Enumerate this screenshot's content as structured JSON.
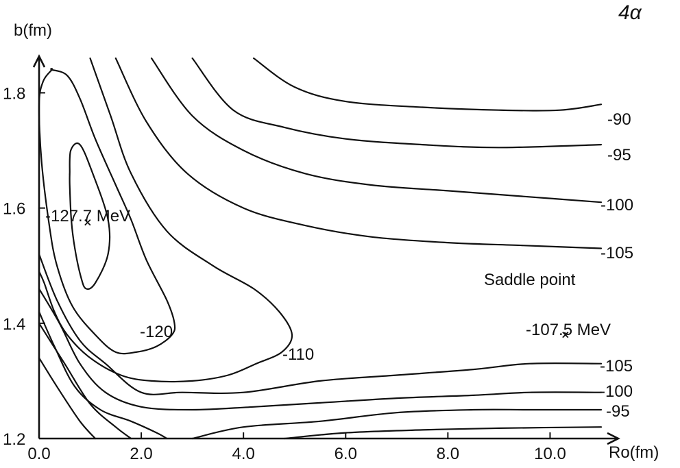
{
  "chart_data": {
    "type": "line",
    "panel_label": "4α",
    "xlabel": "Ro(fm)",
    "ylabel": "b(fm)",
    "xlim": [
      0.0,
      11.0
    ],
    "ylim": [
      1.2,
      1.86
    ],
    "x_ticks": [
      "0.0",
      "2.0",
      "4.0",
      "6.0",
      "8.0",
      "10.0"
    ],
    "y_ticks": [
      "1.2",
      "1.4",
      "1.6",
      "1.8"
    ],
    "grid": false,
    "series": [
      {
        "label": "-127.7",
        "points": [
          [
            0.6,
            1.66
          ],
          [
            0.62,
            1.7
          ],
          [
            0.8,
            1.71
          ],
          [
            1.05,
            1.66
          ],
          [
            1.35,
            1.58
          ],
          [
            1.35,
            1.52
          ],
          [
            1.1,
            1.47
          ],
          [
            0.92,
            1.46
          ],
          [
            0.82,
            1.48
          ],
          [
            0.7,
            1.53
          ],
          [
            0.63,
            1.58
          ],
          [
            0.6,
            1.64
          ],
          [
            0.6,
            1.66
          ]
        ],
        "closed": true
      },
      {
        "label": "-120",
        "points": [
          [
            0.25,
            1.84
          ],
          [
            0.08,
            1.82
          ],
          [
            0.0,
            1.78
          ],
          [
            0.05,
            1.68
          ],
          [
            0.2,
            1.57
          ],
          [
            0.35,
            1.5
          ],
          [
            0.65,
            1.43
          ],
          [
            1.1,
            1.38
          ],
          [
            1.5,
            1.35
          ],
          [
            1.9,
            1.35
          ],
          [
            2.3,
            1.36
          ],
          [
            2.6,
            1.38
          ],
          [
            2.65,
            1.4
          ],
          [
            2.5,
            1.44
          ],
          [
            2.1,
            1.51
          ],
          [
            1.8,
            1.58
          ],
          [
            1.5,
            1.64
          ],
          [
            1.1,
            1.72
          ],
          [
            0.8,
            1.79
          ],
          [
            0.55,
            1.83
          ],
          [
            0.25,
            1.84
          ]
        ],
        "closed": true
      },
      {
        "label": "-110",
        "points": [
          [
            1.0,
            1.86
          ],
          [
            1.4,
            1.76
          ],
          [
            1.8,
            1.66
          ],
          [
            2.5,
            1.56
          ],
          [
            3.4,
            1.5
          ],
          [
            4.2,
            1.46
          ],
          [
            4.7,
            1.42
          ],
          [
            4.95,
            1.38
          ],
          [
            4.75,
            1.35
          ],
          [
            4.25,
            1.33
          ],
          [
            3.7,
            1.31
          ],
          [
            3.0,
            1.3
          ],
          [
            2.2,
            1.3
          ],
          [
            1.6,
            1.31
          ],
          [
            1.0,
            1.34
          ],
          [
            0.55,
            1.38
          ],
          [
            0.3,
            1.42
          ],
          [
            0.1,
            1.47
          ],
          [
            0.0,
            1.49
          ]
        ]
      },
      {
        "label": "-105",
        "points": [
          [
            1.5,
            1.86
          ],
          [
            2.1,
            1.75
          ],
          [
            2.9,
            1.66
          ],
          [
            4.0,
            1.6
          ],
          [
            5.2,
            1.57
          ],
          [
            6.5,
            1.55
          ],
          [
            8.0,
            1.54
          ],
          [
            9.5,
            1.535
          ],
          [
            11.0,
            1.53
          ]
        ]
      },
      {
        "label": "-100",
        "points": [
          [
            2.2,
            1.86
          ],
          [
            3.0,
            1.76
          ],
          [
            4.0,
            1.7
          ],
          [
            5.2,
            1.66
          ],
          [
            6.5,
            1.64
          ],
          [
            8.0,
            1.63
          ],
          [
            9.5,
            1.62
          ],
          [
            11.0,
            1.61
          ]
        ]
      },
      {
        "label": "-95",
        "points": [
          [
            3.0,
            1.86
          ],
          [
            3.8,
            1.77
          ],
          [
            4.8,
            1.74
          ],
          [
            6.0,
            1.72
          ],
          [
            7.5,
            1.71
          ],
          [
            9.0,
            1.705
          ],
          [
            11.0,
            1.71
          ]
        ]
      },
      {
        "label": "-90",
        "points": [
          [
            4.2,
            1.86
          ],
          [
            5.0,
            1.81
          ],
          [
            6.0,
            1.785
          ],
          [
            7.5,
            1.775
          ],
          [
            9.0,
            1.77
          ],
          [
            10.2,
            1.77
          ],
          [
            11.0,
            1.78
          ]
        ]
      },
      {
        "label": "-105",
        "points": [
          [
            0.0,
            1.52
          ],
          [
            0.35,
            1.44
          ],
          [
            0.8,
            1.37
          ],
          [
            1.3,
            1.33
          ],
          [
            2.0,
            1.28
          ],
          [
            2.8,
            1.28
          ],
          [
            4.0,
            1.28
          ],
          [
            5.5,
            1.3
          ],
          [
            7.0,
            1.31
          ],
          [
            8.5,
            1.32
          ],
          [
            9.6,
            1.33
          ],
          [
            11.0,
            1.33
          ]
        ]
      },
      {
        "label": "-100",
        "points": [
          [
            0.0,
            1.46
          ],
          [
            0.4,
            1.4
          ],
          [
            0.8,
            1.33
          ],
          [
            1.3,
            1.28
          ],
          [
            2.0,
            1.255
          ],
          [
            3.0,
            1.25
          ],
          [
            4.2,
            1.255
          ],
          [
            5.5,
            1.262
          ],
          [
            7.0,
            1.27
          ],
          [
            8.5,
            1.275
          ],
          [
            9.6,
            1.28
          ],
          [
            11.0,
            1.28
          ]
        ]
      },
      {
        "label": "-95",
        "points": [
          [
            0.0,
            1.42
          ],
          [
            0.3,
            1.36
          ],
          [
            0.7,
            1.29
          ],
          [
            1.2,
            1.25
          ],
          [
            1.8,
            1.23
          ],
          [
            2.3,
            1.21
          ],
          [
            2.5,
            1.2
          ]
        ]
      },
      {
        "label": "",
        "points": [
          [
            0.0,
            1.6
          ],
          [
            0.0,
            1.49
          ]
        ]
      },
      {
        "label": "",
        "points": [
          [
            0.0,
            1.4
          ],
          [
            0.5,
            1.33
          ],
          [
            1.0,
            1.26
          ],
          [
            1.5,
            1.22
          ],
          [
            1.8,
            1.2
          ]
        ]
      },
      {
        "label": "",
        "points": [
          [
            0.0,
            1.34
          ],
          [
            0.35,
            1.29
          ],
          [
            0.8,
            1.23
          ],
          [
            1.1,
            1.2
          ]
        ]
      },
      {
        "label": "",
        "points": [
          [
            3.0,
            1.2
          ],
          [
            4.0,
            1.22
          ],
          [
            5.5,
            1.23
          ],
          [
            7.0,
            1.245
          ],
          [
            8.5,
            1.25
          ],
          [
            9.6,
            1.25
          ],
          [
            11.0,
            1.25
          ]
        ]
      },
      {
        "label": "",
        "points": [
          [
            4.8,
            1.2
          ],
          [
            6.0,
            1.21
          ],
          [
            7.5,
            1.215
          ],
          [
            9.0,
            1.218
          ],
          [
            11.0,
            1.22
          ]
        ]
      }
    ],
    "contour_labels": [
      "-90",
      "-95",
      "-100",
      "-105",
      "-120",
      "-110",
      "-105",
      "-100",
      "-95"
    ],
    "annotations": [
      {
        "text": "-127.7 MeV",
        "x": 0.95,
        "y": 1.575
      },
      {
        "text": "Saddle point",
        "x": 10.3,
        "y": 1.5
      },
      {
        "text": "-107.5 MeV",
        "x": 10.3,
        "y": 1.38
      }
    ]
  }
}
